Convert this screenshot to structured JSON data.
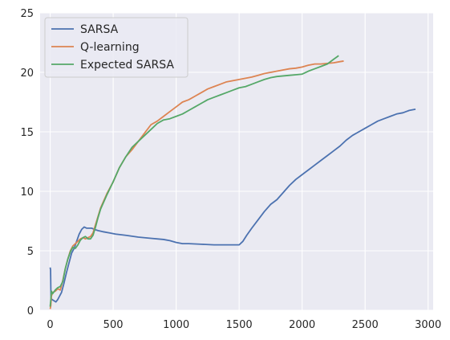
{
  "chart_data": {
    "type": "line",
    "title": "",
    "xlabel": "",
    "ylabel": "",
    "xlim": [
      -80,
      3040
    ],
    "ylim": [
      0,
      25
    ],
    "xticks": [
      0,
      500,
      1000,
      1500,
      2000,
      2500,
      3000
    ],
    "yticks": [
      0,
      5,
      10,
      15,
      20,
      25
    ],
    "grid": true,
    "legend_position": "top-left",
    "series": [
      {
        "name": "SARSA",
        "color": "#4c72b0",
        "points": [
          [
            0,
            3.6
          ],
          [
            3,
            3.4
          ],
          [
            6,
            1.0
          ],
          [
            15,
            0.9
          ],
          [
            30,
            0.8
          ],
          [
            45,
            0.7
          ],
          [
            60,
            0.9
          ],
          [
            75,
            1.2
          ],
          [
            90,
            1.5
          ],
          [
            110,
            2.3
          ],
          [
            130,
            3.2
          ],
          [
            150,
            4.0
          ],
          [
            170,
            4.8
          ],
          [
            190,
            5.2
          ],
          [
            210,
            5.8
          ],
          [
            230,
            6.4
          ],
          [
            250,
            6.8
          ],
          [
            270,
            7.0
          ],
          [
            290,
            6.9
          ],
          [
            310,
            6.9
          ],
          [
            330,
            6.9
          ],
          [
            350,
            6.8
          ],
          [
            380,
            6.7
          ],
          [
            420,
            6.6
          ],
          [
            470,
            6.5
          ],
          [
            520,
            6.4
          ],
          [
            600,
            6.3
          ],
          [
            700,
            6.15
          ],
          [
            800,
            6.05
          ],
          [
            900,
            5.95
          ],
          [
            950,
            5.85
          ],
          [
            1000,
            5.7
          ],
          [
            1050,
            5.6
          ],
          [
            1100,
            5.6
          ],
          [
            1200,
            5.55
          ],
          [
            1300,
            5.5
          ],
          [
            1400,
            5.5
          ],
          [
            1500,
            5.5
          ],
          [
            1530,
            5.8
          ],
          [
            1560,
            6.3
          ],
          [
            1600,
            6.9
          ],
          [
            1650,
            7.6
          ],
          [
            1700,
            8.3
          ],
          [
            1750,
            8.9
          ],
          [
            1800,
            9.3
          ],
          [
            1850,
            9.9
          ],
          [
            1900,
            10.5
          ],
          [
            1950,
            11.0
          ],
          [
            2000,
            11.4
          ],
          [
            2050,
            11.8
          ],
          [
            2100,
            12.2
          ],
          [
            2150,
            12.6
          ],
          [
            2200,
            13.0
          ],
          [
            2250,
            13.4
          ],
          [
            2300,
            13.8
          ],
          [
            2350,
            14.3
          ],
          [
            2400,
            14.7
          ],
          [
            2450,
            15.0
          ],
          [
            2500,
            15.3
          ],
          [
            2550,
            15.6
          ],
          [
            2600,
            15.9
          ],
          [
            2650,
            16.1
          ],
          [
            2700,
            16.3
          ],
          [
            2750,
            16.5
          ],
          [
            2800,
            16.6
          ],
          [
            2850,
            16.8
          ],
          [
            2900,
            16.9
          ]
        ]
      },
      {
        "name": "Q-learning",
        "color": "#dd8452",
        "points": [
          [
            0,
            0.1
          ],
          [
            5,
            0.4
          ],
          [
            10,
            1.2
          ],
          [
            20,
            1.5
          ],
          [
            40,
            1.6
          ],
          [
            60,
            1.8
          ],
          [
            80,
            1.7
          ],
          [
            100,
            2.5
          ],
          [
            120,
            3.5
          ],
          [
            140,
            4.3
          ],
          [
            160,
            5.0
          ],
          [
            180,
            5.4
          ],
          [
            200,
            5.6
          ],
          [
            220,
            5.8
          ],
          [
            240,
            6.0
          ],
          [
            260,
            6.1
          ],
          [
            280,
            6.0
          ],
          [
            300,
            6.1
          ],
          [
            320,
            6.2
          ],
          [
            340,
            6.5
          ],
          [
            360,
            7.2
          ],
          [
            380,
            7.9
          ],
          [
            400,
            8.6
          ],
          [
            450,
            9.8
          ],
          [
            500,
            10.8
          ],
          [
            550,
            12.0
          ],
          [
            600,
            12.9
          ],
          [
            650,
            13.5
          ],
          [
            700,
            14.2
          ],
          [
            750,
            14.9
          ],
          [
            800,
            15.6
          ],
          [
            850,
            15.9
          ],
          [
            900,
            16.3
          ],
          [
            950,
            16.7
          ],
          [
            1000,
            17.1
          ],
          [
            1050,
            17.5
          ],
          [
            1100,
            17.7
          ],
          [
            1150,
            18.0
          ],
          [
            1200,
            18.3
          ],
          [
            1250,
            18.6
          ],
          [
            1300,
            18.8
          ],
          [
            1350,
            19.0
          ],
          [
            1400,
            19.2
          ],
          [
            1450,
            19.3
          ],
          [
            1500,
            19.4
          ],
          [
            1550,
            19.5
          ],
          [
            1600,
            19.6
          ],
          [
            1650,
            19.75
          ],
          [
            1700,
            19.9
          ],
          [
            1750,
            20.0
          ],
          [
            1800,
            20.1
          ],
          [
            1850,
            20.2
          ],
          [
            1900,
            20.3
          ],
          [
            1950,
            20.35
          ],
          [
            2000,
            20.45
          ],
          [
            2050,
            20.6
          ],
          [
            2100,
            20.7
          ],
          [
            2150,
            20.7
          ],
          [
            2200,
            20.75
          ],
          [
            2250,
            20.8
          ],
          [
            2300,
            20.9
          ],
          [
            2330,
            20.95
          ]
        ]
      },
      {
        "name": "Expected SARSA",
        "color": "#55a868",
        "points": [
          [
            0,
            0.3
          ],
          [
            5,
            0.9
          ],
          [
            10,
            1.6
          ],
          [
            20,
            1.4
          ],
          [
            40,
            1.7
          ],
          [
            60,
            1.9
          ],
          [
            80,
            2.0
          ],
          [
            100,
            2.4
          ],
          [
            120,
            3.5
          ],
          [
            140,
            4.3
          ],
          [
            160,
            4.9
          ],
          [
            180,
            5.3
          ],
          [
            200,
            5.2
          ],
          [
            220,
            5.5
          ],
          [
            240,
            5.9
          ],
          [
            260,
            6.1
          ],
          [
            280,
            6.2
          ],
          [
            300,
            6.0
          ],
          [
            320,
            6.0
          ],
          [
            340,
            6.3
          ],
          [
            360,
            7.0
          ],
          [
            380,
            7.8
          ],
          [
            400,
            8.5
          ],
          [
            450,
            9.7
          ],
          [
            500,
            10.8
          ],
          [
            550,
            12.0
          ],
          [
            600,
            12.9
          ],
          [
            650,
            13.7
          ],
          [
            700,
            14.2
          ],
          [
            750,
            14.7
          ],
          [
            800,
            15.2
          ],
          [
            850,
            15.7
          ],
          [
            900,
            16.0
          ],
          [
            950,
            16.1
          ],
          [
            1000,
            16.3
          ],
          [
            1050,
            16.5
          ],
          [
            1100,
            16.8
          ],
          [
            1150,
            17.1
          ],
          [
            1200,
            17.4
          ],
          [
            1250,
            17.7
          ],
          [
            1300,
            17.9
          ],
          [
            1350,
            18.1
          ],
          [
            1400,
            18.3
          ],
          [
            1450,
            18.5
          ],
          [
            1500,
            18.7
          ],
          [
            1550,
            18.8
          ],
          [
            1600,
            19.0
          ],
          [
            1650,
            19.2
          ],
          [
            1700,
            19.4
          ],
          [
            1750,
            19.55
          ],
          [
            1800,
            19.65
          ],
          [
            1850,
            19.7
          ],
          [
            1900,
            19.75
          ],
          [
            1950,
            19.8
          ],
          [
            2000,
            19.85
          ],
          [
            2050,
            20.1
          ],
          [
            2100,
            20.3
          ],
          [
            2150,
            20.5
          ],
          [
            2200,
            20.7
          ],
          [
            2250,
            21.1
          ],
          [
            2290,
            21.4
          ]
        ]
      }
    ]
  }
}
